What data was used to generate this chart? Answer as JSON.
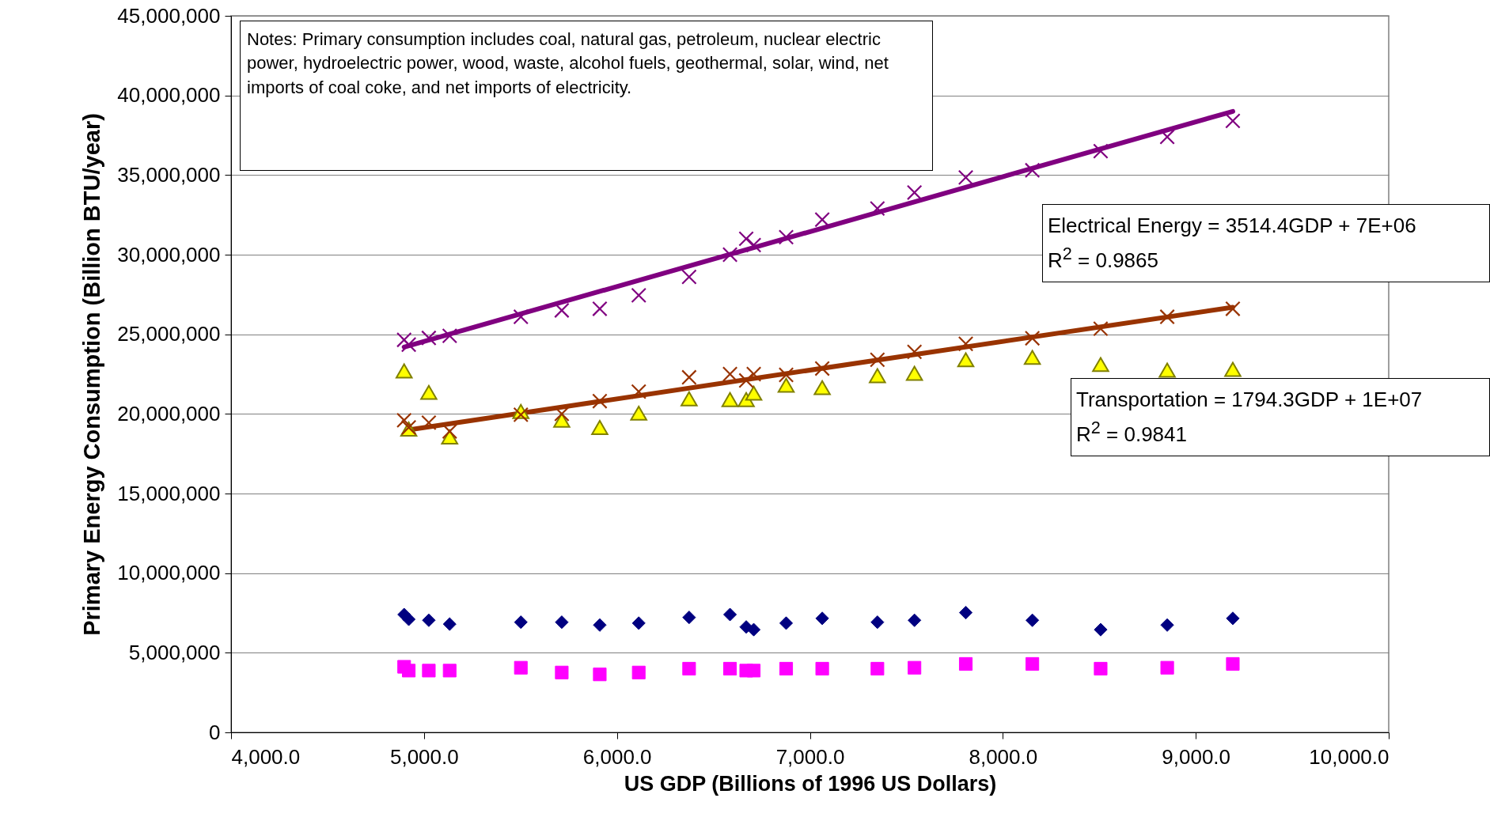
{
  "chart_data": {
    "type": "scatter",
    "xlabel": "US GDP (Billions of 1996 US Dollars)",
    "ylabel": "Primary Energy Consumption (Billion BTU/year)",
    "x": [
      4897,
      4921,
      5025,
      5133,
      5502,
      5714,
      5911,
      6113,
      6374,
      6586,
      6670,
      6709,
      6877,
      7064,
      7350,
      7542,
      7808,
      8153,
      8507,
      8852,
      9192
    ],
    "series": [
      {
        "color": "#800080",
        "marker": "cross",
        "values": [
          24650000,
          24350000,
          24770000,
          24900000,
          26100000,
          26500000,
          26600000,
          27450000,
          28600000,
          30000000,
          31000000,
          30600000,
          31100000,
          32200000,
          32900000,
          33900000,
          34850000,
          35300000,
          36500000,
          37400000,
          38400000
        ]
      },
      {
        "color": "#993300",
        "marker": "cross",
        "values": [
          19600000,
          19150000,
          19450000,
          18900000,
          19950000,
          20000000,
          20800000,
          21400000,
          22300000,
          22500000,
          22100000,
          22500000,
          22450000,
          22850000,
          23400000,
          23900000,
          24400000,
          24750000,
          25350000,
          26100000,
          26600000
        ]
      },
      {
        "color": "#ffff00",
        "marker": "triangle",
        "values": [
          22700000,
          19050000,
          21350000,
          18550000,
          20150000,
          19600000,
          19150000,
          20050000,
          20950000,
          20900000,
          20900000,
          21300000,
          21800000,
          21650000,
          22400000,
          22550000,
          23400000,
          23550000,
          23100000,
          22750000,
          22800000
        ]
      },
      {
        "color": "#000080",
        "marker": "diamond",
        "values": [
          7400000,
          7100000,
          7040000,
          6800000,
          6920000,
          6920000,
          6740000,
          6860000,
          7220000,
          7400000,
          6620000,
          6450000,
          6860000,
          7160000,
          6920000,
          7040000,
          7520000,
          7040000,
          6450000,
          6740000,
          7160000
        ]
      },
      {
        "color": "#ff00ff",
        "marker": "square",
        "values": [
          4120000,
          3880000,
          3880000,
          3880000,
          4060000,
          3760000,
          3640000,
          3760000,
          4000000,
          4000000,
          3880000,
          3880000,
          4000000,
          4000000,
          4000000,
          4060000,
          4300000,
          4300000,
          4000000,
          4060000,
          4300000
        ]
      },
      {
        "type": "line",
        "color": "#800080",
        "x": [
          4897,
          9192
        ],
        "values": [
          24200000,
          39000000
        ]
      },
      {
        "type": "line",
        "color": "#993300",
        "x": [
          4921,
          9192
        ],
        "values": [
          19000000,
          26700000
        ]
      }
    ],
    "xlim": [
      4000,
      10000
    ],
    "xticks": [
      {
        "value": 4000,
        "label": "4,000.0"
      },
      {
        "value": 5000,
        "label": "5,000.0"
      },
      {
        "value": 6000,
        "label": "6,000.0"
      },
      {
        "value": 7000,
        "label": "7,000.0"
      },
      {
        "value": 8000,
        "label": "8,000.0"
      },
      {
        "value": 9000,
        "label": "9,000.0"
      },
      {
        "value": 10000,
        "label": "10,000.0"
      }
    ],
    "ylim": [
      0,
      45000000
    ],
    "yticks": [
      0,
      {
        "value": 5000000,
        "label": "5,000,000"
      },
      {
        "value": 10000000,
        "label": "10,000,000"
      },
      {
        "value": 15000000,
        "label": "15,000,000"
      },
      {
        "value": 20000000,
        "label": "20,000,000"
      },
      {
        "value": 25000000,
        "label": "25,000,000"
      },
      {
        "value": 30000000,
        "label": "30,000,000"
      },
      {
        "value": 35000000,
        "label": "35,000,000"
      },
      {
        "value": 40000000,
        "label": "40,000,000"
      },
      {
        "value": 45000000,
        "label": "45,000,000"
      }
    ],
    "grid": "y",
    "annotations": [
      "Notes: Primary consumption includes coal, natural gas, petroleum, nuclear electric power, hydroelectric power, wood, waste, alcohol fuels, geothermal, solar, wind, net imports of coal coke, and net imports of electricity.",
      "Electrical Energy = 3514.4GDP + 7E+06",
      "R$^{2}$ = 0.9865",
      "Transportation = 1794.3GDP + 1E+07",
      "R$^{2}$ = 0.9841"
    ]
  }
}
